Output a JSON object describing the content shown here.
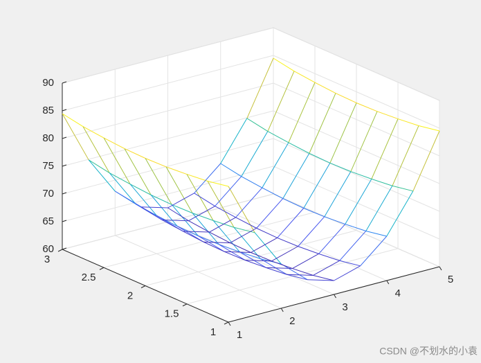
{
  "chart_data": {
    "type": "mesh3d",
    "x": [
      1,
      1.5,
      2,
      2.5,
      3,
      3.5,
      4,
      4.5,
      5
    ],
    "y": [
      1,
      1.25,
      1.5,
      1.75,
      2,
      2.25,
      2.5,
      2.75,
      3
    ],
    "z": [
      [
        84.5,
        74.9,
        68,
        63.9,
        62.5,
        63.9,
        68,
        74.9,
        84.5
      ],
      [
        83.8,
        74.2,
        67.3,
        63.2,
        61.8,
        63.2,
        67.3,
        74.2,
        83.8
      ],
      [
        83.4,
        73.8,
        66.9,
        62.8,
        61.4,
        62.8,
        66.9,
        73.8,
        83.4
      ],
      [
        83.1,
        73.5,
        66.6,
        62.5,
        61.1,
        62.5,
        66.6,
        73.5,
        83.1
      ],
      [
        83,
        73.4,
        66.5,
        62.4,
        61,
        62.4,
        66.5,
        73.4,
        83
      ],
      [
        83.1,
        73.5,
        66.6,
        62.5,
        61.1,
        62.5,
        66.6,
        73.5,
        83.1
      ],
      [
        83.4,
        73.8,
        66.9,
        62.8,
        61.4,
        62.8,
        66.9,
        73.8,
        83.4
      ],
      [
        83.8,
        74.2,
        67.3,
        63.2,
        61.8,
        63.2,
        67.3,
        74.2,
        83.8
      ],
      [
        84.5,
        74.9,
        68,
        63.9,
        62.5,
        63.9,
        68,
        74.9,
        84.5
      ]
    ],
    "xlim": [
      1,
      5
    ],
    "ylim": [
      1,
      3
    ],
    "zlim": [
      60,
      90
    ],
    "xticks": [
      1,
      2,
      3,
      4,
      5
    ],
    "yticks": [
      1,
      1.5,
      2,
      2.5,
      3
    ],
    "zticks": [
      60,
      65,
      70,
      75,
      80,
      85,
      90
    ],
    "grid": true,
    "colormap": "parula"
  },
  "watermark": "CSDN @不划水的小袁"
}
